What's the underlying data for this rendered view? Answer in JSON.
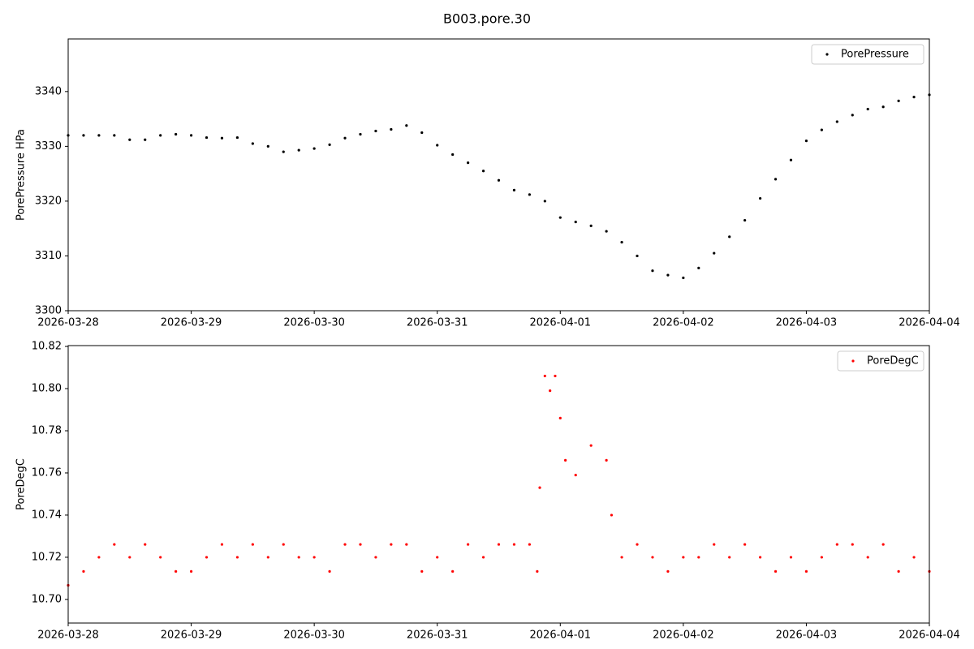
{
  "title": "B003.pore.30",
  "chart_data": [
    {
      "type": "scatter",
      "ylabel": "PorePressure HPa",
      "legend": "upper right",
      "xlim": [
        "2026-03-28",
        "2026-04-04"
      ],
      "xticks": [
        "2026-03-28",
        "2026-03-29",
        "2026-03-30",
        "2026-03-31",
        "2026-04-01",
        "2026-04-02",
        "2026-04-03",
        "2026-04-04"
      ],
      "ylim": [
        3300,
        3349.6
      ],
      "yticks": [
        3300,
        3310,
        3320,
        3330,
        3340
      ],
      "x": [
        "2026-03-28T00:00",
        "2026-03-28T03:00",
        "2026-03-28T06:00",
        "2026-03-28T09:00",
        "2026-03-28T12:00",
        "2026-03-28T15:00",
        "2026-03-28T18:00",
        "2026-03-28T21:00",
        "2026-03-29T00:00",
        "2026-03-29T03:00",
        "2026-03-29T06:00",
        "2026-03-29T09:00",
        "2026-03-29T12:00",
        "2026-03-29T15:00",
        "2026-03-29T18:00",
        "2026-03-29T21:00",
        "2026-03-30T00:00",
        "2026-03-30T03:00",
        "2026-03-30T06:00",
        "2026-03-30T09:00",
        "2026-03-30T12:00",
        "2026-03-30T15:00",
        "2026-03-30T18:00",
        "2026-03-30T21:00",
        "2026-03-31T00:00",
        "2026-03-31T03:00",
        "2026-03-31T06:00",
        "2026-03-31T09:00",
        "2026-03-31T12:00",
        "2026-03-31T15:00",
        "2026-03-31T18:00",
        "2026-03-31T21:00",
        "2026-04-01T00:00",
        "2026-04-01T03:00",
        "2026-04-01T06:00",
        "2026-04-01T09:00",
        "2026-04-01T12:00",
        "2026-04-01T15:00",
        "2026-04-01T18:00",
        "2026-04-01T21:00",
        "2026-04-02T00:00",
        "2026-04-02T03:00",
        "2026-04-02T06:00",
        "2026-04-02T09:00",
        "2026-04-02T12:00",
        "2026-04-02T15:00",
        "2026-04-02T18:00",
        "2026-04-02T21:00",
        "2026-04-03T00:00",
        "2026-04-03T03:00",
        "2026-04-03T06:00",
        "2026-04-03T09:00",
        "2026-04-03T12:00",
        "2026-04-03T15:00",
        "2026-04-03T18:00",
        "2026-04-03T21:00",
        "2026-04-04T00:00"
      ],
      "series": [
        {
          "name": "PorePressure",
          "color": "#000000",
          "values": [
            3332,
            3332,
            3332,
            3332,
            3331.2,
            3331.2,
            3332,
            3332.2,
            3332,
            3331.6,
            3331.5,
            3331.6,
            3330.5,
            3330,
            3329,
            3329.3,
            3329.6,
            3330.3,
            3331.5,
            3332.2,
            3332.8,
            3333.1,
            3333.8,
            3332.5,
            3330.2,
            3328.5,
            3327,
            3325.5,
            3323.8,
            3322,
            3321.2,
            3320,
            3317,
            3316.2,
            3315.5,
            3314.5,
            3312.5,
            3310,
            3307.3,
            3306.5,
            3306,
            3307.8,
            3310.5,
            3313.5,
            3316.5,
            3320.5,
            3324,
            3327.5,
            3331,
            3333,
            3334.5,
            3335.7,
            3336.8,
            3337.2,
            3338.3,
            3339,
            3339.4
          ]
        }
      ]
    },
    {
      "type": "scatter",
      "ylabel": "PoreDegC",
      "legend": "upper right",
      "xlim": [
        "2026-03-28",
        "2026-04-04"
      ],
      "xticks": [
        "2026-03-28",
        "2026-03-29",
        "2026-03-30",
        "2026-03-31",
        "2026-04-01",
        "2026-04-02",
        "2026-04-03",
        "2026-04-04"
      ],
      "ylim": [
        10.6888,
        10.8204
      ],
      "yticks": [
        {
          "value": 10.7,
          "label": "10.70"
        },
        10.72,
        10.74,
        10.76,
        10.78,
        {
          "value": 10.8,
          "label": "10.80"
        },
        10.82
      ],
      "x": [
        "2026-03-28T00:00",
        "2026-03-28T03:00",
        "2026-03-28T06:00",
        "2026-03-28T09:00",
        "2026-03-28T12:00",
        "2026-03-28T15:00",
        "2026-03-28T18:00",
        "2026-03-28T21:00",
        "2026-03-29T00:00",
        "2026-03-29T03:00",
        "2026-03-29T06:00",
        "2026-03-29T09:00",
        "2026-03-29T12:00",
        "2026-03-29T15:00",
        "2026-03-29T18:00",
        "2026-03-29T21:00",
        "2026-03-30T00:00",
        "2026-03-30T03:00",
        "2026-03-30T06:00",
        "2026-03-30T09:00",
        "2026-03-30T12:00",
        "2026-03-30T15:00",
        "2026-03-30T18:00",
        "2026-03-30T21:00",
        "2026-03-31T00:00",
        "2026-03-31T03:00",
        "2026-03-31T06:00",
        "2026-03-31T09:00",
        "2026-03-31T12:00",
        "2026-03-31T15:00",
        "2026-03-31T18:00",
        "2026-03-31T19:30",
        "2026-03-31T20:00",
        "2026-03-31T21:00",
        "2026-03-31T22:00",
        "2026-03-31T23:00",
        "2026-04-01T00:00",
        "2026-04-01T01:00",
        "2026-04-01T03:00",
        "2026-04-01T06:00",
        "2026-04-01T09:00",
        "2026-04-01T10:00",
        "2026-04-01T12:00",
        "2026-04-01T15:00",
        "2026-04-01T18:00",
        "2026-04-01T21:00",
        "2026-04-02T00:00",
        "2026-04-02T03:00",
        "2026-04-02T06:00",
        "2026-04-02T09:00",
        "2026-04-02T12:00",
        "2026-04-02T15:00",
        "2026-04-02T18:00",
        "2026-04-02T21:00",
        "2026-04-03T00:00",
        "2026-04-03T03:00",
        "2026-04-03T06:00",
        "2026-04-03T09:00",
        "2026-04-03T12:00",
        "2026-04-03T15:00",
        "2026-04-03T18:00",
        "2026-04-03T21:00",
        "2026-04-04T00:00"
      ],
      "series": [
        {
          "name": "PoreDegC",
          "color": "#ff0000",
          "values": [
            10.7067,
            10.7133,
            10.72,
            10.7261,
            10.72,
            10.7261,
            10.72,
            10.7133,
            10.7133,
            10.72,
            10.7261,
            10.72,
            10.7261,
            10.72,
            10.7261,
            10.72,
            10.72,
            10.7133,
            10.7261,
            10.7261,
            10.72,
            10.7261,
            10.7261,
            10.7133,
            10.72,
            10.7133,
            10.7261,
            10.72,
            10.7261,
            10.7261,
            10.7261,
            10.7133,
            10.753,
            10.806,
            10.799,
            10.806,
            10.786,
            10.766,
            10.759,
            10.773,
            10.766,
            10.74,
            10.72,
            10.7261,
            10.72,
            10.7133,
            10.72,
            10.72,
            10.7261,
            10.72,
            10.7261,
            10.72,
            10.7133,
            10.72,
            10.7133,
            10.72,
            10.7261,
            10.7261,
            10.72,
            10.7261,
            10.7133,
            10.72,
            10.7133
          ]
        }
      ]
    }
  ]
}
